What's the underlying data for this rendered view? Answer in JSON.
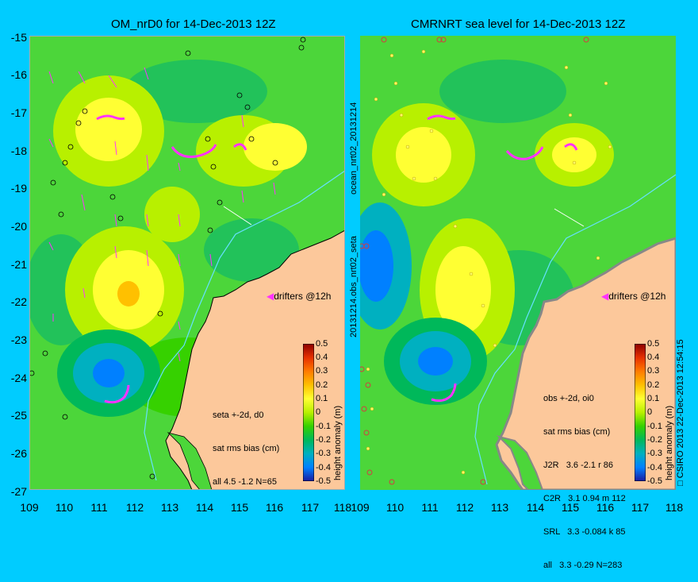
{
  "left_panel": {
    "title": "OM_nrD0 for 14-Dec-2013 12Z",
    "side_label": "ocean_nrt02_20131214",
    "info_lines": [
      "seta +-2d, d0",
      "sat rms bias (cm)",
      "all 4.5 -1.2 N=65"
    ],
    "drifters_label": "drifters @12h"
  },
  "right_panel": {
    "title": "CMRNRT sea level  for 14-Dec-2013 12Z",
    "side_label": "20131214.obs_nrt02_seta",
    "info_lines": [
      "obs +-2d, oi0",
      "sat rms bias (cm)",
      "J2R   3.6 -2.1 r 86",
      "C2R   3.1 0.94 m 112",
      "SRL   3.3 -0.084 k 85",
      "all   3.3 -0.29 N=283"
    ],
    "drifters_label": "drifters @12h"
  },
  "axes": {
    "lat_ticks": [
      "-15",
      "-16",
      "-17",
      "-18",
      "-19",
      "-20",
      "-21",
      "-22",
      "-23",
      "-24",
      "-25",
      "-26",
      "-27"
    ],
    "lon_ticks": [
      "109",
      "110",
      "111",
      "112",
      "113",
      "114",
      "115",
      "116",
      "117",
      "118"
    ]
  },
  "colorbar": {
    "title": "height anomaly (m)",
    "ticks": [
      "0.5",
      "0.4",
      "0.3",
      "0.2",
      "0.1",
      "0",
      "-0.1",
      "-0.2",
      "-0.3",
      "-0.4",
      "-0.5"
    ],
    "colors": [
      "#8b0000",
      "#e63000",
      "#ff7a00",
      "#ffc000",
      "#ffff33",
      "#b8f000",
      "#36d100",
      "#00b85a",
      "#00b0c0",
      "#0080ff",
      "#1a1aa0"
    ]
  },
  "copyright": "CSIRO 2013   22-Dec-2013 12:54:15",
  "map_colors": {
    "land": "#fcc89b",
    "base": "#4cd63a",
    "coastline": "#000000"
  }
}
